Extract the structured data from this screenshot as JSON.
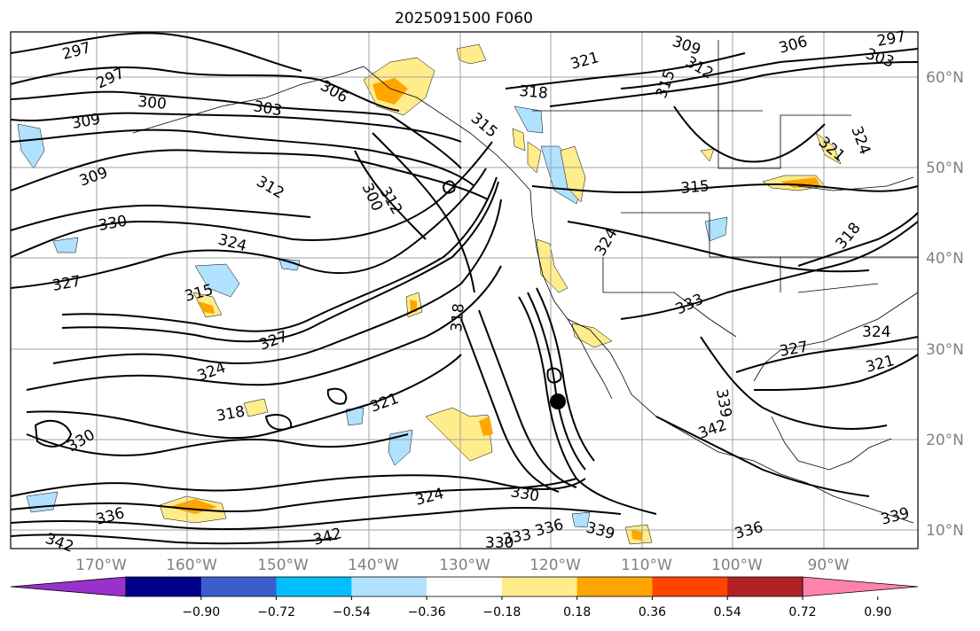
{
  "title": "2025091500 F060",
  "lat_labels": [
    "60°N",
    "50°N",
    "40°N",
    "30°N",
    "20°N",
    "10°N"
  ],
  "lon_labels": [
    "170°W",
    "160°W",
    "150°W",
    "140°W",
    "130°W",
    "120°W",
    "110°W",
    "100°W",
    "90°W"
  ],
  "contour_labels": [
    "297",
    "297",
    "300",
    "303",
    "306",
    "309",
    "309",
    "312",
    "315",
    "318",
    "321",
    "324",
    "324",
    "327",
    "327",
    "330",
    "330",
    "336",
    "342",
    "342",
    "318",
    "321",
    "324",
    "330",
    "336",
    "339",
    "336",
    "333",
    "330",
    "342",
    "339",
    "333",
    "324",
    "327",
    "321",
    "318",
    "315",
    "312",
    "309",
    "306",
    "303",
    "297",
    "324",
    "321",
    "315",
    "324",
    "318",
    "339",
    "315",
    "312",
    "300"
  ],
  "colorbar": {
    "ticks": [
      "−0.90",
      "−0.72",
      "−0.54",
      "−0.36",
      "−0.18",
      "0.18",
      "0.36",
      "0.54",
      "0.72",
      "0.90"
    ],
    "colors": [
      "#9932cc",
      "#00008b",
      "#3a5fcd",
      "#00bfff",
      "#b0e2ff",
      "#ffffff",
      "#ffec8b",
      "#ffa500",
      "#ff4500",
      "#b22222",
      "#ff82ab"
    ]
  },
  "marker": {
    "symbol": "filled-circle",
    "color": "#000000"
  }
}
